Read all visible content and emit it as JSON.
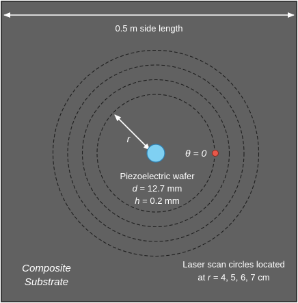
{
  "colors": {
    "substrate": "#616161",
    "border": "#3a3a3a",
    "scan_circle": "#1e1e1e",
    "wafer_fill": "#7fd0f2",
    "wafer_stroke": "#2e7fb0",
    "point_fill": "#e8584a",
    "point_stroke": "#8a2a20",
    "text": "#ffffff",
    "arrow": "#ffffff"
  },
  "dimension": {
    "label": "0.5 m side length"
  },
  "radius_arrow": {
    "label": "r"
  },
  "theta_label": "θ = 0",
  "wafer": {
    "title": "Piezoelectric wafer",
    "d_symbol": "d",
    "d_value": "= 12.7 mm",
    "h_symbol": "h",
    "h_value": "= 0.2 mm"
  },
  "substrate": {
    "line1": "Composite",
    "line2": "Substrate"
  },
  "scan_note": {
    "line1": "Laser scan circles located",
    "line2_prefix": "at",
    "line2_symbol": "r",
    "line2_value": "= 4, 5, 6, 7 cm"
  },
  "scan_radii_cm": [
    4,
    5,
    6,
    7
  ],
  "icons": {
    "wafer": "circle-disc-icon",
    "scan_point": "dot-icon",
    "dimension_arrow": "double-arrow-icon",
    "radius_arrow": "arrow-icon"
  }
}
